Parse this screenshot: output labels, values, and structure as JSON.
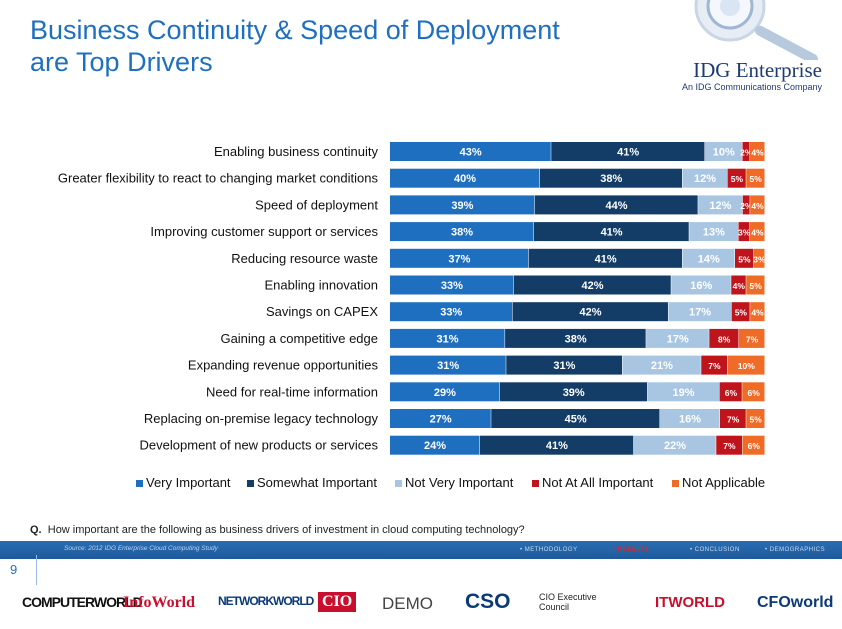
{
  "slide": {
    "title_line1": "Business Continuity & Speed of Deployment",
    "title_line2": "are Top Drivers",
    "page_number": "9"
  },
  "logo": {
    "name": "IDG Enterprise",
    "tagline": "An IDG Communications Company"
  },
  "question": {
    "prefix": "Q.",
    "text": "How important are the following as business drivers of investment in cloud computing technology?"
  },
  "footer": {
    "source": "Source: 2012 IDG Enterprise Cloud Computing Study",
    "nav": [
      {
        "label": "• METHODOLOGY",
        "active": false
      },
      {
        "label": "• RESULTS",
        "active": true
      },
      {
        "label": "• CONCLUSION",
        "active": false
      },
      {
        "label": "• DEMOGRAPHICS",
        "active": false
      }
    ]
  },
  "brands": [
    "COMPUTERWORLD",
    "InfoWorld",
    "NETWORKWORLD",
    "CIO",
    "DEMO",
    "CSO",
    "CIO Executive Council",
    "ITWORLD",
    "CFOworld"
  ],
  "chart_data": {
    "type": "bar",
    "orientation": "horizontal",
    "stacked": true,
    "categories": [
      "Enabling business continuity",
      "Greater flexibility to react to changing market conditions",
      "Speed of deployment",
      "Improving customer support or services",
      "Reducing resource waste",
      "Enabling innovation",
      "Savings on CAPEX",
      "Gaining a competitive edge",
      "Expanding revenue opportunities",
      "Need for real-time information",
      "Replacing on-premise legacy technology",
      "Development of new products or services"
    ],
    "series": [
      {
        "name": "Very Important",
        "color": "#1f6fc0",
        "values": [
          43,
          40,
          39,
          38,
          37,
          33,
          33,
          31,
          31,
          29,
          27,
          24
        ]
      },
      {
        "name": "Somewhat Important",
        "color": "#133c66",
        "values": [
          41,
          38,
          44,
          41,
          41,
          42,
          42,
          38,
          31,
          39,
          45,
          41
        ]
      },
      {
        "name": "Not Very Important",
        "color": "#a8c6e2",
        "values": [
          10,
          12,
          12,
          13,
          14,
          16,
          17,
          17,
          21,
          19,
          16,
          22
        ]
      },
      {
        "name": "Not At All Important",
        "color": "#c0141c",
        "values": [
          2,
          5,
          2,
          3,
          5,
          4,
          5,
          8,
          7,
          6,
          7,
          7
        ]
      },
      {
        "name": "Not Applicable",
        "color": "#ef6b28",
        "values": [
          4,
          5,
          4,
          4,
          3,
          5,
          4,
          7,
          10,
          6,
          5,
          6
        ]
      }
    ],
    "value_suffix": "%",
    "legend_position": "bottom"
  }
}
